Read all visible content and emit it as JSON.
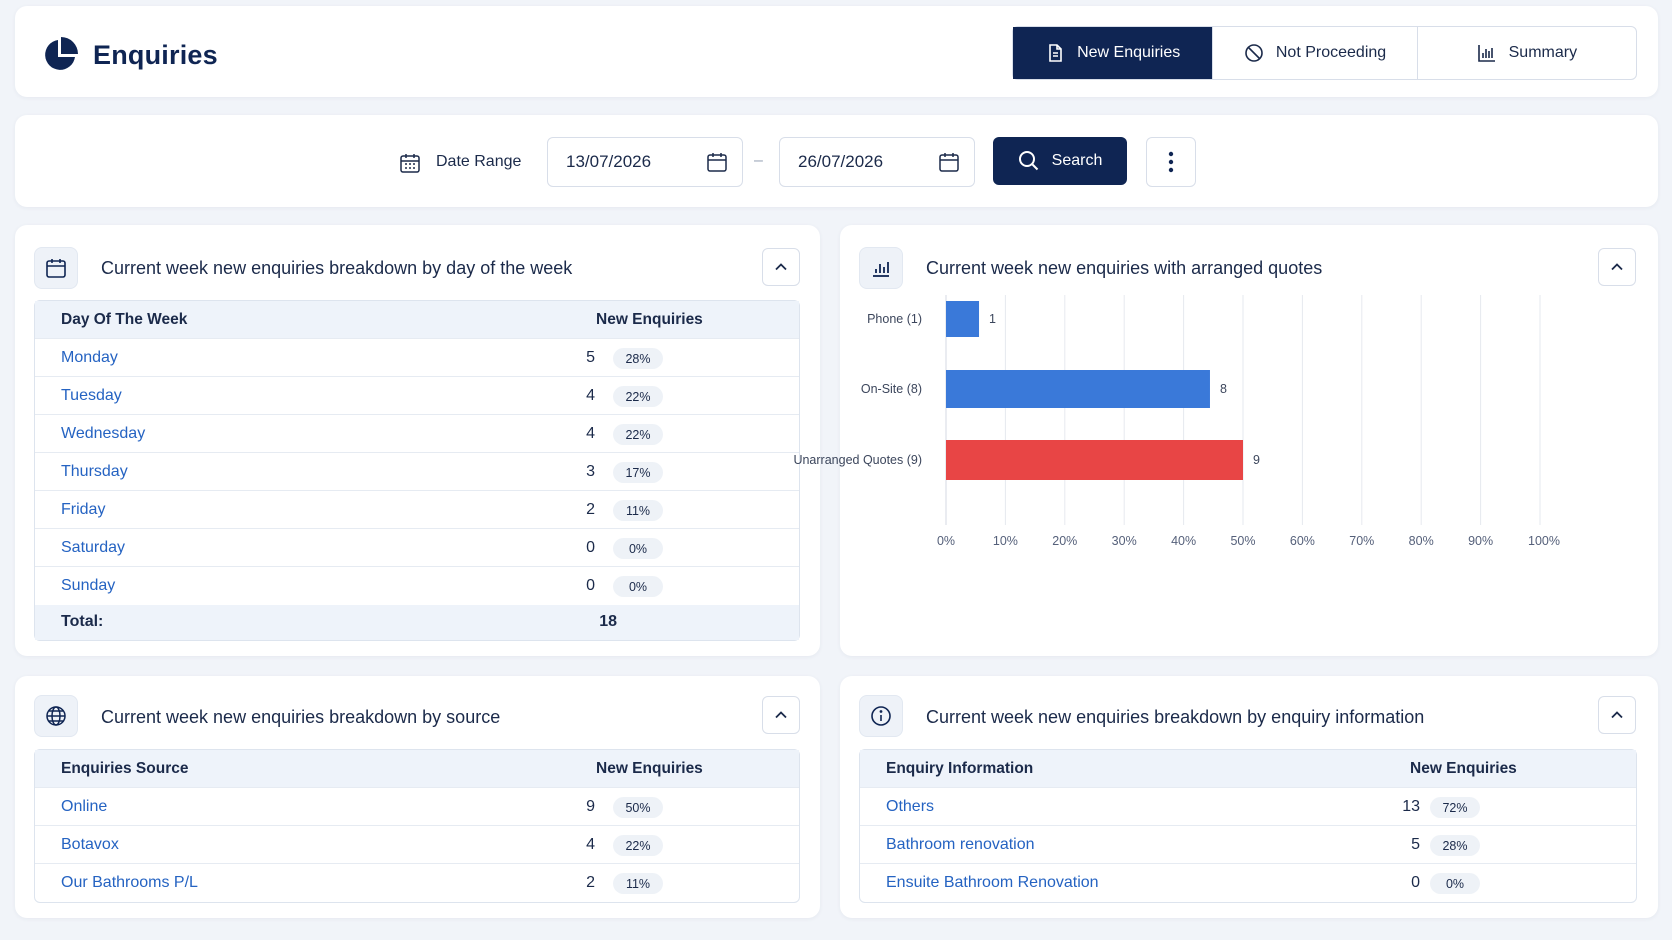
{
  "header": {
    "title": "Enquiries",
    "tabs": [
      {
        "label": "New Enquiries",
        "icon": "document-icon",
        "active": true
      },
      {
        "label": "Not Proceeding",
        "icon": "ban-icon",
        "active": false
      },
      {
        "label": "Summary",
        "icon": "bar-chart-icon",
        "active": false
      }
    ]
  },
  "filters": {
    "date_range_label": "Date Range",
    "date_from": "13/07/2026",
    "date_to": "26/07/2026",
    "search_label": "Search"
  },
  "day_panel": {
    "title": "Current week new enquiries breakdown by day of the week",
    "col_name": "Day Of The Week",
    "col_value": "New Enquiries",
    "rows": [
      {
        "name": "Monday",
        "count": "5",
        "pct": "28%"
      },
      {
        "name": "Tuesday",
        "count": "4",
        "pct": "22%"
      },
      {
        "name": "Wednesday",
        "count": "4",
        "pct": "22%"
      },
      {
        "name": "Thursday",
        "count": "3",
        "pct": "17%"
      },
      {
        "name": "Friday",
        "count": "2",
        "pct": "11%"
      },
      {
        "name": "Saturday",
        "count": "0",
        "pct": "0%"
      },
      {
        "name": "Sunday",
        "count": "0",
        "pct": "0%"
      }
    ],
    "total_label": "Total:",
    "total_value": "18"
  },
  "quotes_panel": {
    "title": "Current week new enquiries with arranged quotes"
  },
  "chart_data": {
    "type": "bar",
    "orientation": "horizontal",
    "categories": [
      "Phone (1)",
      "On-Site (8)",
      "Unarranged Quotes (9)"
    ],
    "values": [
      1,
      8,
      9
    ],
    "percent_values": [
      5.56,
      44.44,
      50
    ],
    "data_labels": [
      "1",
      "8",
      "9"
    ],
    "bar_colors": [
      "#3a79d9",
      "#3a79d9",
      "#e84545"
    ],
    "x_ticks": [
      "0%",
      "10%",
      "20%",
      "30%",
      "40%",
      "50%",
      "60%",
      "70%",
      "80%",
      "90%",
      "100%"
    ],
    "xlim": [
      0,
      100
    ],
    "grid": true
  },
  "source_panel": {
    "title": "Current week new enquiries breakdown by source",
    "col_name": "Enquiries Source",
    "col_value": "New Enquiries",
    "rows": [
      {
        "name": "Online",
        "count": "9",
        "pct": "50%"
      },
      {
        "name": "Botavox",
        "count": "4",
        "pct": "22%"
      },
      {
        "name": "Our Bathrooms P/L",
        "count": "2",
        "pct": "11%"
      }
    ]
  },
  "info_panel": {
    "title": "Current week new enquiries breakdown by enquiry information",
    "col_name": "Enquiry Information",
    "col_value": "New Enquiries",
    "rows": [
      {
        "name": "Others",
        "count": "13",
        "pct": "72%"
      },
      {
        "name": "Bathroom renovation",
        "count": "5",
        "pct": "28%"
      },
      {
        "name": "Ensuite Bathroom Renovation",
        "count": "0",
        "pct": "0%"
      }
    ]
  }
}
